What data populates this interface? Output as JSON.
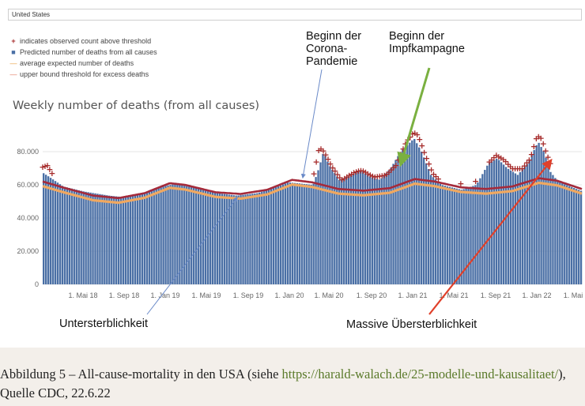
{
  "filter": {
    "value": "United States"
  },
  "legend": [
    {
      "symbol": "+",
      "color": "#a52a2a",
      "label": "indicates observed count above threshold"
    },
    {
      "symbol": "■",
      "color": "#4a6fa5",
      "label": "Predicted number of deaths from all causes"
    },
    {
      "symbol": "—",
      "color": "#e8a040",
      "label": "average expected number of deaths"
    },
    {
      "symbol": "—",
      "color": "#e07a5f",
      "label": "upper bound threshold for excess deaths"
    }
  ],
  "annotations": {
    "corona": "Beginn der Corona-Pandemie",
    "corona_lines": [
      "Beginn der",
      "Corona-",
      "Pandemie"
    ],
    "vaccine_lines": [
      "Beginn der",
      "Impfkampagne"
    ],
    "under": "Untersterblichkeit",
    "over": "Massive Übersterblichkeit"
  },
  "caption": {
    "line1_prefix": "Abbildung 5 – All-cause-mortality in den USA (siehe ",
    "link": "https://harald-walach.de/25-modelle-und-kausalitaet/",
    "line1_suffix": "),",
    "line2": "Quelle CDC, 22.6.22"
  },
  "colors": {
    "bars": "#4a6fa5",
    "threshold": "#a52a3a",
    "average": "#f0a860",
    "observed": "#a52a2a",
    "arrow_blue": "#6a8ac8",
    "arrow_green": "#7ab040",
    "arrow_red": "#e0402a"
  },
  "chart_data": {
    "type": "bar",
    "title": "Weekly number of deaths (from all causes)",
    "y_ticks": [
      "0",
      "20.000",
      "40.000",
      "60.000",
      "80.000"
    ],
    "x_ticks": [
      "1. Mai 18",
      "1. Sep 18",
      "1. Jan 19",
      "1. Mai 19",
      "1. Sep 19",
      "1. Jan 20",
      "1. Mai 20",
      "1. Sep 20",
      "1. Jan 21",
      "1. Mai 21",
      "1. Sep 21",
      "1. Jan 22",
      "1. Mai"
    ],
    "ylim": [
      0,
      95000
    ],
    "x_range": [
      "2018-01-01",
      "2022-05-28"
    ],
    "grid": true,
    "series": [
      {
        "name": "Predicted number of deaths from all causes",
        "key": "predicted",
        "keyframes": [
          [
            "2018-01-01",
            67000
          ],
          [
            "2018-01-20",
            64500
          ],
          [
            "2018-03-01",
            59000
          ],
          [
            "2018-05-01",
            56000
          ],
          [
            "2018-07-15",
            53500
          ],
          [
            "2018-09-01",
            52500
          ],
          [
            "2018-11-01",
            55000
          ],
          [
            "2019-01-01",
            59500
          ],
          [
            "2019-02-01",
            60500
          ],
          [
            "2019-04-01",
            58000
          ],
          [
            "2019-06-01",
            55000
          ],
          [
            "2019-08-01",
            53500
          ],
          [
            "2019-10-01",
            55000
          ],
          [
            "2019-12-01",
            59000
          ],
          [
            "2020-01-01",
            61500
          ],
          [
            "2020-03-15",
            60000
          ],
          [
            "2020-04-01",
            70000
          ],
          [
            "2020-04-15",
            80000
          ],
          [
            "2020-05-01",
            72000
          ],
          [
            "2020-06-01",
            63000
          ],
          [
            "2020-07-10",
            66000
          ],
          [
            "2020-08-01",
            69000
          ],
          [
            "2020-09-01",
            65000
          ],
          [
            "2020-10-01",
            63000
          ],
          [
            "2020-11-01",
            70000
          ],
          [
            "2020-12-01",
            80000
          ],
          [
            "2021-01-10",
            88000
          ],
          [
            "2021-02-01",
            80000
          ],
          [
            "2021-03-01",
            66000
          ],
          [
            "2021-04-01",
            60000
          ],
          [
            "2021-06-01",
            57000
          ],
          [
            "2021-07-15",
            60000
          ],
          [
            "2021-08-20",
            73000
          ],
          [
            "2021-09-15",
            76000
          ],
          [
            "2021-10-15",
            70000
          ],
          [
            "2021-11-15",
            66000
          ],
          [
            "2021-12-15",
            73000
          ],
          [
            "2022-01-15",
            86000
          ],
          [
            "2022-02-01",
            80000
          ],
          [
            "2022-02-20",
            68000
          ],
          [
            "2022-03-15",
            62000
          ],
          [
            "2022-05-28",
            56000
          ]
        ]
      },
      {
        "name": "upper bound threshold for excess deaths",
        "key": "threshold",
        "keyframes": [
          [
            "2018-01-01",
            62000
          ],
          [
            "2018-03-01",
            58500
          ],
          [
            "2018-06-01",
            53500
          ],
          [
            "2018-08-15",
            52000
          ],
          [
            "2018-11-01",
            55000
          ],
          [
            "2019-01-15",
            61000
          ],
          [
            "2019-03-01",
            60000
          ],
          [
            "2019-06-01",
            55500
          ],
          [
            "2019-08-15",
            54500
          ],
          [
            "2019-11-01",
            57000
          ],
          [
            "2020-01-15",
            63000
          ],
          [
            "2020-03-15",
            61500
          ],
          [
            "2020-06-01",
            57500
          ],
          [
            "2020-08-15",
            56500
          ],
          [
            "2020-11-01",
            58000
          ],
          [
            "2021-01-15",
            63500
          ],
          [
            "2021-03-15",
            62000
          ],
          [
            "2021-06-01",
            58500
          ],
          [
            "2021-08-15",
            57500
          ],
          [
            "2021-11-01",
            59000
          ],
          [
            "2022-01-20",
            64000
          ],
          [
            "2022-03-15",
            62500
          ],
          [
            "2022-05-28",
            57500
          ]
        ]
      },
      {
        "name": "average expected number of deaths",
        "key": "average",
        "offset": -2800
      },
      {
        "name": "indicates observed count above threshold",
        "key": "observed",
        "marker": "+",
        "keyframes": [
          [
            "2018-01-01",
            71000
          ],
          [
            "2018-01-15",
            72000
          ],
          [
            "2018-02-01",
            66000
          ],
          [
            "2020-03-20",
            67000
          ],
          [
            "2020-04-05",
            83000
          ],
          [
            "2020-04-20",
            80000
          ],
          [
            "2020-05-10",
            72000
          ],
          [
            "2020-06-10",
            63000
          ],
          [
            "2020-07-20",
            68000
          ],
          [
            "2020-08-10",
            69000
          ],
          [
            "2020-09-15",
            65000
          ],
          [
            "2020-10-20",
            66000
          ],
          [
            "2020-11-20",
            72000
          ],
          [
            "2020-12-20",
            86000
          ],
          [
            "2021-01-12",
            92000
          ],
          [
            "2021-01-25",
            90000
          ],
          [
            "2021-02-15",
            78000
          ],
          [
            "2021-03-10",
            67000
          ],
          [
            "2021-04-01",
            62500
          ],
          [
            "2021-06-01",
            61000
          ],
          [
            "2021-07-15",
            62500
          ],
          [
            "2021-08-25",
            74000
          ],
          [
            "2021-09-15",
            78000
          ],
          [
            "2021-10-10",
            75000
          ],
          [
            "2021-11-01",
            70000
          ],
          [
            "2021-12-01",
            70000
          ],
          [
            "2021-12-25",
            76000
          ],
          [
            "2022-01-15",
            90000
          ],
          [
            "2022-01-28",
            88000
          ],
          [
            "2022-02-10",
            80000
          ],
          [
            "2022-03-01",
            70000
          ]
        ]
      }
    ]
  }
}
